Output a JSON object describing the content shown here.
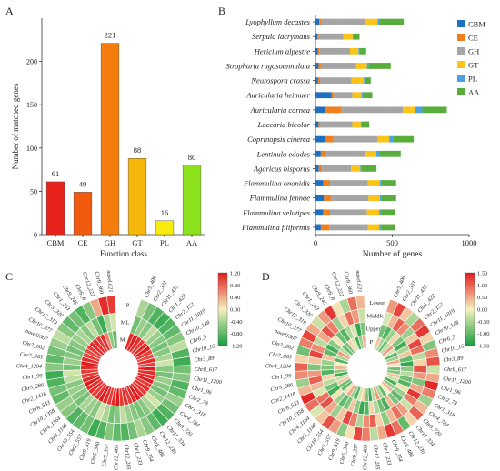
{
  "panels": {
    "A": "A",
    "B": "B",
    "C": "C",
    "D": "D"
  },
  "chart_data": [
    {
      "panel": "A",
      "type": "bar",
      "categories": [
        "CBM",
        "CE",
        "GH",
        "GT",
        "PL",
        "AA"
      ],
      "values": [
        61,
        49,
        221,
        88,
        16,
        80
      ],
      "colors": [
        "#e8231b",
        "#f25a10",
        "#f47d0e",
        "#f6b70c",
        "#f7ea0f",
        "#8be21a"
      ],
      "xlabel": "Function class",
      "ylabel": "Number of matched genes",
      "ylim": [
        0,
        250
      ],
      "yticks": [
        0,
        50,
        100,
        150,
        200
      ],
      "data_labels": true,
      "grid": false
    },
    {
      "panel": "B",
      "type": "bar",
      "orientation": "horizontal",
      "stacked": true,
      "categories": [
        "Lyophyllum decastes",
        "Serpula lacrymans",
        "Hericium alpestre",
        "Stropharia rugosoannulata",
        "Neurospora crassa",
        "Auricularia heimuer",
        "Auricularia cornea",
        "Laccaria bicolor",
        "Coprinopsis cinerea",
        "Lentinula edodes",
        "Agaricus bisporus",
        "Flammulina ononidis",
        "Flammulina fennae",
        "Flammulina velutipes",
        "Flammulina filiformis"
      ],
      "series": [
        {
          "name": "CBM",
          "color": "#1f6fc1",
          "values": [
            25,
            12,
            15,
            20,
            15,
            105,
            60,
            20,
            65,
            35,
            22,
            50,
            55,
            50,
            35
          ]
        },
        {
          "name": "CE",
          "color": "#f07f1f",
          "values": [
            15,
            10,
            10,
            15,
            15,
            15,
            110,
            10,
            50,
            25,
            20,
            45,
            45,
            45,
            55
          ]
        },
        {
          "name": "GH",
          "color": "#a5a5a5",
          "values": [
            285,
            160,
            200,
            230,
            205,
            120,
            400,
            210,
            290,
            265,
            190,
            245,
            245,
            240,
            250
          ]
        },
        {
          "name": "GT",
          "color": "#fcc418",
          "values": [
            80,
            60,
            55,
            70,
            80,
            60,
            80,
            55,
            75,
            70,
            60,
            80,
            75,
            80,
            75
          ]
        },
        {
          "name": "PL",
          "color": "#4fa0e0",
          "values": [
            10,
            5,
            5,
            10,
            5,
            10,
            45,
            5,
            25,
            20,
            10,
            10,
            10,
            10,
            10
          ]
        },
        {
          "name": "AA",
          "color": "#59ad3c",
          "values": [
            160,
            40,
            45,
            145,
            40,
            60,
            160,
            50,
            135,
            140,
            95,
            95,
            95,
            95,
            95
          ]
        }
      ],
      "xlabel": "Number of genes",
      "xlim": [
        0,
        1000
      ],
      "xticks": [
        0,
        500,
        1000
      ],
      "legend_position": "right",
      "grid": false
    },
    {
      "panel": "C",
      "type": "heatmap",
      "layout": "circular",
      "ring_labels": [
        "P",
        "ML",
        "M"
      ],
      "genes": [
        "Chr5_406",
        "Chr2_331",
        "Chr11_435",
        "Chr1_422",
        "Chr2_152",
        "Chr11_1019",
        "Chr10_148",
        "Chr6_5",
        "Chr10_16",
        "Chr3_89",
        "Chr8_617",
        "Chr11_1200",
        "Chr1_96",
        "Chr2_78",
        "Chr1_318",
        "Chr4_784",
        "Chr8_720",
        "Chr11_334",
        "Chr12_230",
        "Chr8_486",
        "Chr9_354",
        "Chr1_233",
        "Chr12_285",
        "Chr12_463",
        "Chr9_357",
        "Chr5_340",
        "Chr9_619",
        "Chr2_557",
        "Chr10_554",
        "Chr3_1148",
        "Chr4_1164",
        "Chr10_1358",
        "Chr8_533",
        "Chr2_1418",
        "Chr5_286",
        "Chr1_99",
        "Chr4_1204",
        "Chr7_863",
        "Chr2_602",
        "novel1007",
        "Chr10_377",
        "Chr12_319",
        "Chr5_320",
        "Chr1_263",
        "Chr9_245",
        "Chr6_8",
        "Chr12_222",
        "Chr9_360",
        "novel.621"
      ],
      "colorbar": {
        "ticks": [
          "1.20",
          "0.80",
          "0.40",
          "0.00",
          "-0.40",
          "-0.80",
          "-1.20"
        ],
        "vmin": -1.2,
        "vmax": 1.2,
        "low_color": "#1a9e3f",
        "mid_color": "#f5f0c0",
        "high_color": "#e31a1c"
      },
      "values": [
        [
          -0.4,
          -0.7,
          -0.9,
          -1.0,
          -0.9,
          -0.8,
          -0.6,
          -0.3,
          -0.9,
          -1.0,
          -0.7,
          -0.6,
          -0.9,
          -0.8,
          -0.5,
          -0.7,
          -0.9,
          -1.0,
          -0.8,
          -0.6,
          -0.4,
          -0.7,
          -0.9,
          -0.8,
          -0.6,
          -0.9,
          -1.0,
          -0.7,
          -0.8,
          -0.9,
          -0.6,
          -0.5,
          -0.8,
          -0.7,
          -0.9,
          -1.0,
          -0.6,
          -0.8,
          -0.7,
          -0.5,
          -0.3,
          -0.6,
          -0.8,
          -0.7,
          -0.9,
          -0.6,
          0.4,
          1.1,
          1.0
        ],
        [
          -0.7,
          -0.5,
          -0.6,
          -0.3,
          -0.5,
          -0.6,
          -0.7,
          -0.6,
          -0.4,
          -0.2,
          -0.6,
          -0.7,
          -0.5,
          -0.6,
          -0.7,
          -0.5,
          -0.2,
          -0.4,
          -0.6,
          -0.7,
          -0.6,
          -0.5,
          -0.3,
          -0.6,
          -0.7,
          -0.4,
          -0.2,
          -0.6,
          -0.5,
          -0.4,
          -0.7,
          -0.6,
          -0.5,
          -0.6,
          -0.3,
          -0.2,
          -0.7,
          -0.5,
          -0.6,
          -0.7,
          -0.6,
          -0.5,
          -0.4,
          -0.6,
          -0.3,
          -0.7,
          -1.0,
          -0.4,
          -0.2
        ],
        [
          1.1,
          1.2,
          1.1,
          1.0,
          1.1,
          1.2,
          1.0,
          0.9,
          1.1,
          1.0,
          1.2,
          1.1,
          1.1,
          1.2,
          1.0,
          1.1,
          1.0,
          1.1,
          1.2,
          1.1,
          1.0,
          1.1,
          1.0,
          1.2,
          1.1,
          1.0,
          1.1,
          1.2,
          1.1,
          1.0,
          1.1,
          1.1,
          1.2,
          1.1,
          1.0,
          1.0,
          1.1,
          1.2,
          1.1,
          1.0,
          0.9,
          1.0,
          1.1,
          1.1,
          1.0,
          1.1,
          0.6,
          -0.6,
          -0.8
        ]
      ]
    },
    {
      "panel": "D",
      "type": "heatmap",
      "layout": "circular",
      "ring_labels": [
        "Lower",
        "Middle",
        "Upper",
        "P"
      ],
      "genes": [
        "Chr5_406",
        "Chr2_331",
        "Chr11_435",
        "Chr1_422",
        "Chr2_152",
        "Chr11_1019",
        "Chr10_148",
        "Chr6_5",
        "Chr10_16",
        "Chr3_89",
        "Chr8_617",
        "Chr11_1200",
        "Chr1_96",
        "Chr2_78",
        "Chr1_318",
        "Chr4_784",
        "Chr8_720",
        "Chr11_334",
        "Chr12_230",
        "Chr8_486",
        "Chr9_354",
        "Chr1_233",
        "Chr12_285",
        "Chr12_463",
        "Chr9_357",
        "Chr5_340",
        "Chr9_619",
        "Chr2_557",
        "Chr10_554",
        "Chr3_1148",
        "Chr4_1164",
        "Chr10_1358",
        "Chr8_533",
        "Chr2_1418",
        "Chr5_286",
        "Chr1_99",
        "Chr4_1204",
        "Chr7_863",
        "Chr2_602",
        "novel1007",
        "Chr10_377",
        "Chr12_319",
        "Chr5_320",
        "Chr1_263",
        "Chr9_245",
        "Chr6_8",
        "Chr12_222",
        "Chr9_360",
        "novel.621"
      ],
      "colorbar": {
        "ticks": [
          "1.50",
          "1.00",
          "0.50",
          "0.00",
          "-0.50",
          "-1.00",
          "-1.50"
        ],
        "vmin": -1.5,
        "vmax": 1.5,
        "low_color": "#1a9e3f",
        "mid_color": "#f5f0c0",
        "high_color": "#e31a1c"
      },
      "values": [
        [
          0.6,
          1.2,
          0.3,
          -0.5,
          0.9,
          1.3,
          0.2,
          -0.8,
          0.7,
          1.1,
          -0.3,
          0.5,
          1.4,
          0.8,
          -0.6,
          0.4,
          1.0,
          0.2,
          -1.0,
          0.9,
          1.3,
          0.5,
          -0.4,
          0.8,
          1.2,
          0.1,
          -0.7,
          0.6,
          1.1,
          0.3,
          -0.2,
          0.9,
          1.4,
          0.4,
          -0.6,
          0.7,
          1.0,
          0.2,
          -0.9,
          0.8,
          1.2,
          0.5,
          -0.3,
          0.6,
          1.3,
          0.1,
          -0.5,
          0.9,
          0.4
        ],
        [
          -0.2,
          0.4,
          1.0,
          0.7,
          -0.6,
          0.3,
          1.2,
          0.9,
          -0.4,
          0.2,
          1.1,
          0.6,
          -0.8,
          0.5,
          1.3,
          0.8,
          -0.3,
          0.6,
          0.9,
          0.4,
          -0.7,
          0.2,
          1.0,
          0.7,
          -0.5,
          0.8,
          1.2,
          0.3,
          -0.6,
          0.5,
          1.1,
          0.9,
          -0.2,
          0.4,
          1.0,
          0.6,
          -0.8,
          0.3,
          1.2,
          0.7,
          -0.4,
          0.5,
          1.1,
          0.8,
          -0.6,
          0.2,
          0.9,
          0.6,
          -0.3
        ],
        [
          -0.9,
          -1.1,
          -0.6,
          0.2,
          -0.8,
          -1.2,
          -0.5,
          0.3,
          -1.0,
          -1.3,
          -0.7,
          -0.4,
          -0.9,
          -1.1,
          0.1,
          -0.6,
          -1.0,
          -0.8,
          0.4,
          -1.2,
          -0.9,
          -0.5,
          0.2,
          -1.1,
          -1.3,
          -0.7,
          0.3,
          -0.8,
          -1.0,
          -0.6,
          0.1,
          -1.2,
          -0.9,
          -0.4,
          0.2,
          -1.1,
          -0.8,
          -0.6,
          0.3,
          -1.0,
          -1.2,
          -0.7,
          0.1,
          -0.9,
          -1.1,
          -0.5,
          -0.2,
          -1.3,
          -0.8
        ],
        [
          0.3,
          -0.5,
          -0.9,
          -0.4,
          0.6,
          -0.2,
          -1.1,
          -0.6,
          0.5,
          0.1,
          -0.9,
          -0.8,
          0.3,
          -0.3,
          -1.2,
          -0.7,
          0.4,
          0.0,
          -1.0,
          -0.5,
          0.6,
          -0.4,
          -1.3,
          -0.8,
          0.2,
          -0.2,
          -1.1,
          -0.6,
          0.5,
          0.1,
          -1.0,
          -0.9,
          0.3,
          -0.3,
          -1.2,
          -0.7,
          0.4,
          0.0,
          -1.1,
          -0.5,
          0.6,
          -0.4,
          -1.0,
          -0.8,
          0.2,
          -0.2,
          -1.2,
          -0.6,
          0.5
        ]
      ]
    }
  ]
}
